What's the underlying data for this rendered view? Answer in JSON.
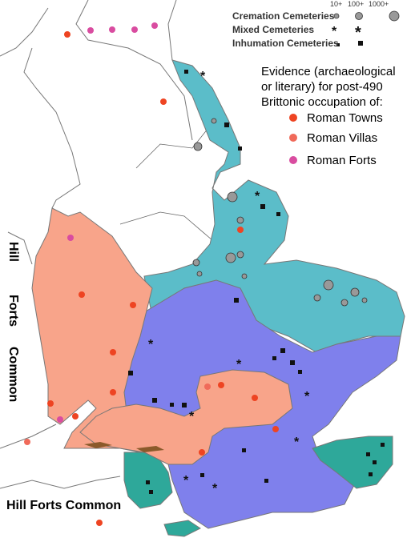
{
  "legend": {
    "size_labels": [
      "10+",
      "100+",
      "1000+"
    ],
    "cemeteries": [
      "Cremation Cemeteries",
      "Mixed Cemeteries",
      "Inhumation Cemeteries"
    ],
    "evidence_heading": [
      "Evidence (archaeological",
      "or literary) for post-490",
      "Brittonic occupation of:"
    ],
    "occupation": [
      "Roman Towns",
      "Roman Villas",
      "Roman Forts"
    ]
  },
  "labels": {
    "west": [
      "Hill",
      "Forts",
      "Common"
    ],
    "south": "Hill Forts Common"
  }
}
